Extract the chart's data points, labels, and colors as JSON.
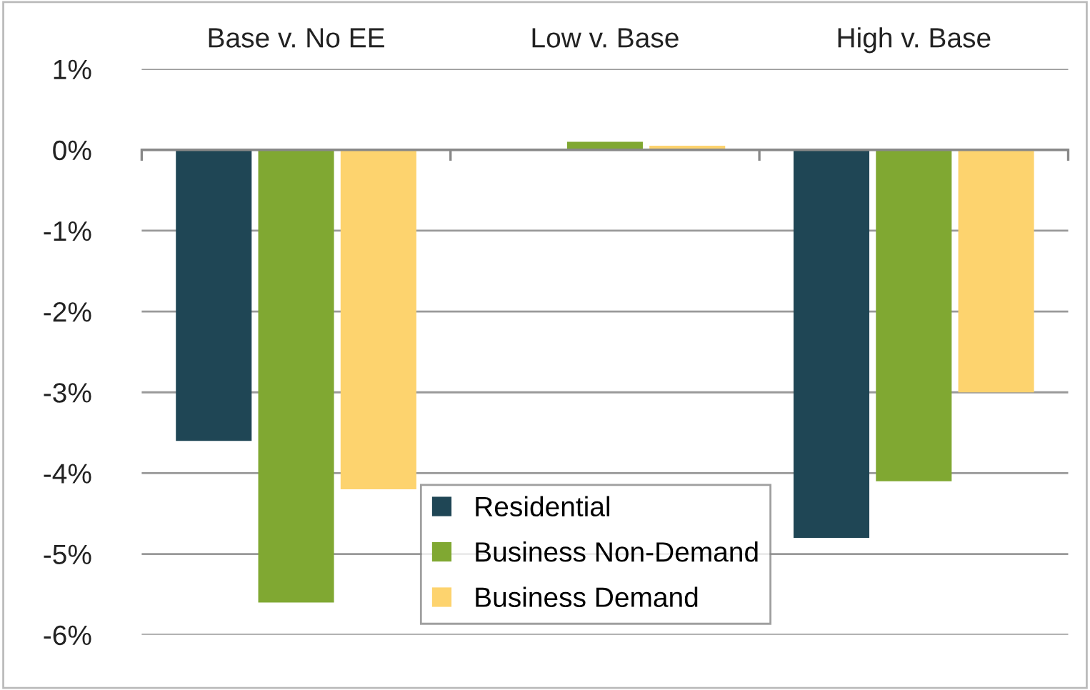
{
  "chart_data": {
    "type": "bar",
    "categories": [
      "Base v. No EE",
      "Low v. Base",
      "High v. Base"
    ],
    "series": [
      {
        "name": "Residential",
        "color": "#1f4655",
        "values": [
          -3.6,
          0,
          -4.8
        ]
      },
      {
        "name": "Business Non-Demand",
        "color": "#80a832",
        "values": [
          -5.6,
          0.1,
          -4.1
        ]
      },
      {
        "name": "Business Demand",
        "color": "#fdd36e",
        "values": [
          -4.2,
          0.05,
          -3.0
        ]
      }
    ],
    "ylim": [
      -6,
      1
    ],
    "yticks": [
      {
        "value": 1,
        "label": "1%"
      },
      {
        "value": 0,
        "label": "0%"
      },
      {
        "value": -1,
        "label": "-1%"
      },
      {
        "value": -2,
        "label": "-2%"
      },
      {
        "value": -3,
        "label": "-3%"
      },
      {
        "value": -4,
        "label": "-4%"
      },
      {
        "value": -5,
        "label": "-5%"
      },
      {
        "value": -6,
        "label": "-6%"
      }
    ],
    "grid": "y",
    "legend": "bottom"
  }
}
